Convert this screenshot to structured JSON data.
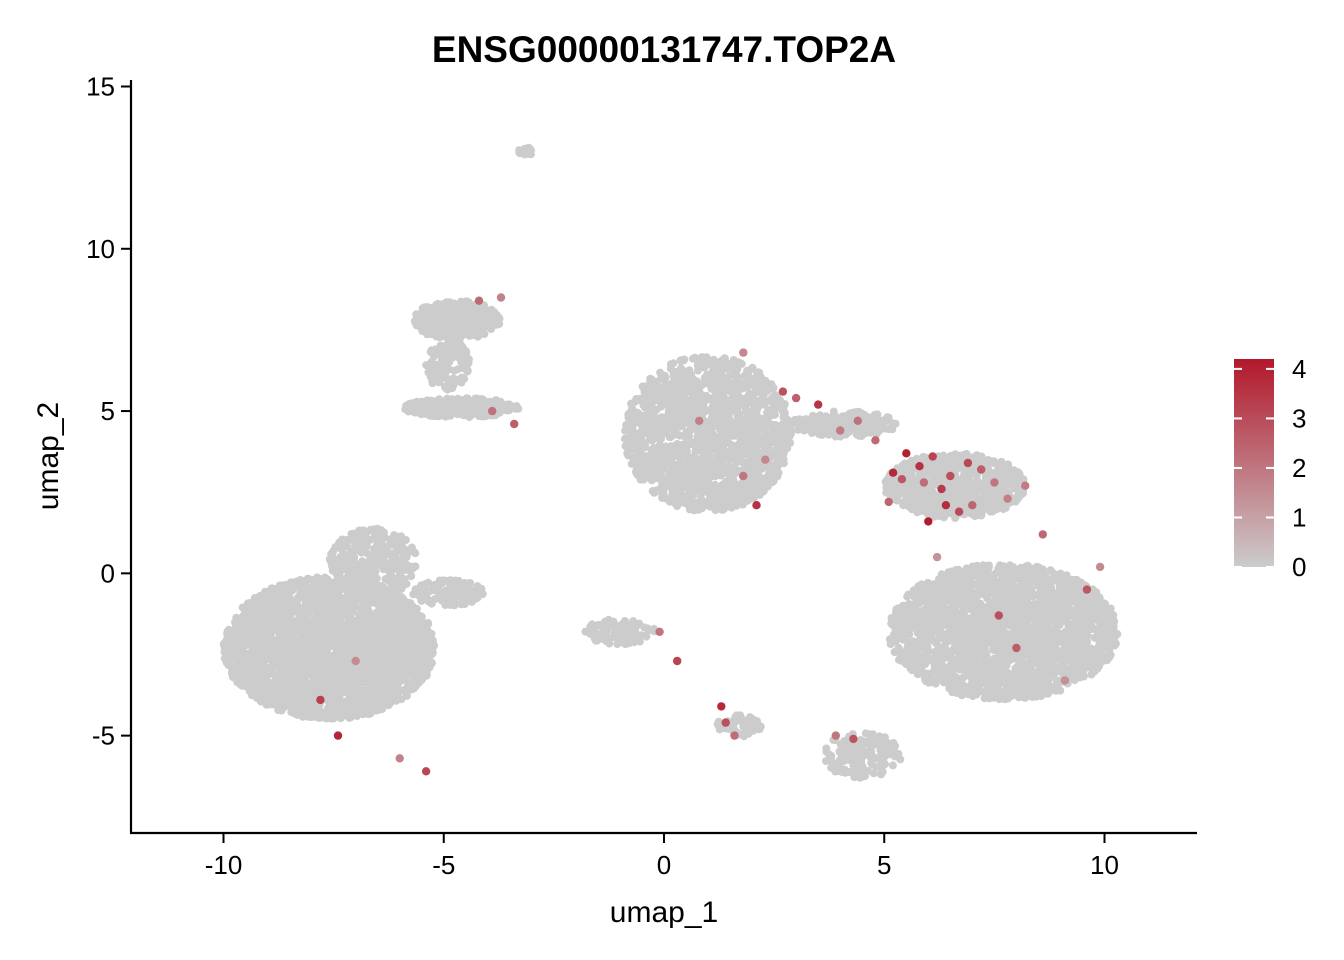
{
  "chart_data": {
    "type": "scatter",
    "title": "ENSG00000131747.TOP2A",
    "xlabel": "umap_1",
    "ylabel": "umap_2",
    "xlim": [
      -12.1,
      12.1
    ],
    "ylim": [
      -8.0,
      15.2
    ],
    "x_ticks": [
      -10,
      -5,
      0,
      5,
      10
    ],
    "x_tick_labels": [
      "-10",
      "-5",
      "0",
      "5",
      "10"
    ],
    "y_ticks": [
      -5,
      0,
      5,
      10,
      15
    ],
    "y_tick_labels": [
      "-5",
      "0",
      "5",
      "10",
      "15"
    ],
    "grid": false,
    "legend": {
      "placement": "right",
      "type": "colorbar",
      "range": [
        0,
        4.2
      ],
      "ticks": [
        0,
        1,
        2,
        3,
        4
      ],
      "tick_labels": [
        "0",
        "1",
        "2",
        "3",
        "4"
      ],
      "low_color": "#cccccc",
      "high_color": "#b2182b"
    },
    "point_color_background": "#cccccc",
    "clusters": [
      {
        "id": "left-large",
        "cx": -7.6,
        "cy": -2.3,
        "rx": 2.4,
        "ry": 2.2,
        "n": 2600
      },
      {
        "id": "left-top-bump",
        "cx": -6.6,
        "cy": 0.3,
        "rx": 1.0,
        "ry": 1.1,
        "n": 300
      },
      {
        "id": "left-tail",
        "cx": -4.9,
        "cy": -0.6,
        "rx": 0.8,
        "ry": 0.4,
        "n": 120
      },
      {
        "id": "left-upper",
        "cx": -4.7,
        "cy": 7.8,
        "rx": 1.0,
        "ry": 0.6,
        "n": 350
      },
      {
        "id": "left-upper-neck",
        "cx": -4.9,
        "cy": 6.4,
        "rx": 0.5,
        "ry": 0.8,
        "n": 120
      },
      {
        "id": "left-mid",
        "cx": -4.6,
        "cy": 5.1,
        "rx": 1.3,
        "ry": 0.3,
        "n": 260
      },
      {
        "id": "top-small",
        "cx": -3.1,
        "cy": 13.0,
        "rx": 0.2,
        "ry": 0.12,
        "n": 20
      },
      {
        "id": "center-top",
        "cx": 1.0,
        "cy": 4.3,
        "rx": 1.9,
        "ry": 2.4,
        "n": 1500
      },
      {
        "id": "center-small",
        "cx": -1.0,
        "cy": -1.8,
        "rx": 0.8,
        "ry": 0.4,
        "n": 110
      },
      {
        "id": "bottom-small",
        "cx": 1.7,
        "cy": -4.7,
        "rx": 0.5,
        "ry": 0.35,
        "n": 60
      },
      {
        "id": "bridge",
        "cx": 4.1,
        "cy": 4.6,
        "rx": 1.2,
        "ry": 0.4,
        "n": 160
      },
      {
        "id": "cycling",
        "cx": 6.6,
        "cy": 2.7,
        "rx": 1.6,
        "ry": 1.0,
        "n": 650
      },
      {
        "id": "right-large",
        "cx": 7.7,
        "cy": -1.8,
        "rx": 2.6,
        "ry": 2.1,
        "n": 2200
      },
      {
        "id": "right-bottom",
        "cx": 4.5,
        "cy": -5.6,
        "rx": 0.9,
        "ry": 0.7,
        "n": 160
      }
    ],
    "expressing_points": [
      {
        "x": 5.5,
        "y": 3.7,
        "v": 4.0
      },
      {
        "x": 5.8,
        "y": 3.3,
        "v": 3.6
      },
      {
        "x": 6.1,
        "y": 3.6,
        "v": 3.2
      },
      {
        "x": 5.2,
        "y": 3.1,
        "v": 3.8
      },
      {
        "x": 6.5,
        "y": 3.0,
        "v": 2.9
      },
      {
        "x": 6.9,
        "y": 3.4,
        "v": 3.1
      },
      {
        "x": 7.2,
        "y": 3.2,
        "v": 2.6
      },
      {
        "x": 6.3,
        "y": 2.6,
        "v": 3.4
      },
      {
        "x": 7.0,
        "y": 2.1,
        "v": 2.4
      },
      {
        "x": 6.4,
        "y": 2.1,
        "v": 3.7
      },
      {
        "x": 5.9,
        "y": 2.8,
        "v": 2.2
      },
      {
        "x": 7.5,
        "y": 2.8,
        "v": 2.0
      },
      {
        "x": 6.0,
        "y": 1.6,
        "v": 4.1
      },
      {
        "x": 6.7,
        "y": 1.9,
        "v": 3.0
      },
      {
        "x": 5.4,
        "y": 2.9,
        "v": 2.7
      },
      {
        "x": 7.8,
        "y": 2.3,
        "v": 1.8
      },
      {
        "x": 4.4,
        "y": 4.7,
        "v": 2.1
      },
      {
        "x": 3.5,
        "y": 5.2,
        "v": 3.5
      },
      {
        "x": 3.0,
        "y": 5.4,
        "v": 2.5
      },
      {
        "x": 4.0,
        "y": 4.4,
        "v": 1.9
      },
      {
        "x": 2.7,
        "y": 5.6,
        "v": 2.8
      },
      {
        "x": 4.8,
        "y": 4.1,
        "v": 2.3
      },
      {
        "x": 1.8,
        "y": 6.8,
        "v": 1.6
      },
      {
        "x": 2.1,
        "y": 2.1,
        "v": 3.6
      },
      {
        "x": 1.8,
        "y": 3.0,
        "v": 2.0
      },
      {
        "x": 0.8,
        "y": 4.7,
        "v": 1.8
      },
      {
        "x": 8.0,
        "y": -2.3,
        "v": 2.6
      },
      {
        "x": 7.6,
        "y": -1.3,
        "v": 2.9
      },
      {
        "x": 9.6,
        "y": -0.5,
        "v": 2.7
      },
      {
        "x": 9.9,
        "y": 0.2,
        "v": 1.5
      },
      {
        "x": 9.1,
        "y": -3.3,
        "v": 1.4
      },
      {
        "x": 8.6,
        "y": 1.2,
        "v": 2.3
      },
      {
        "x": -7.8,
        "y": -3.9,
        "v": 3.3
      },
      {
        "x": -7.4,
        "y": -5.0,
        "v": 3.9
      },
      {
        "x": -5.4,
        "y": -6.1,
        "v": 3.1
      },
      {
        "x": -6.0,
        "y": -5.7,
        "v": 1.7
      },
      {
        "x": -7.0,
        "y": -2.7,
        "v": 1.5
      },
      {
        "x": 1.3,
        "y": -4.1,
        "v": 3.8
      },
      {
        "x": 1.4,
        "y": -4.6,
        "v": 2.9
      },
      {
        "x": 1.6,
        "y": -5.0,
        "v": 2.2
      },
      {
        "x": 0.3,
        "y": -2.7,
        "v": 3.2
      },
      {
        "x": -0.1,
        "y": -1.8,
        "v": 2.0
      },
      {
        "x": 4.3,
        "y": -5.1,
        "v": 2.8
      },
      {
        "x": 3.9,
        "y": -5.0,
        "v": 2.0
      },
      {
        "x": -3.4,
        "y": 4.6,
        "v": 2.6
      },
      {
        "x": -3.9,
        "y": 5.0,
        "v": 2.1
      },
      {
        "x": -3.7,
        "y": 8.5,
        "v": 1.7
      },
      {
        "x": -4.2,
        "y": 8.4,
        "v": 2.3
      },
      {
        "x": 2.3,
        "y": 3.5,
        "v": 1.6
      },
      {
        "x": 5.1,
        "y": 2.2,
        "v": 2.4
      },
      {
        "x": 8.2,
        "y": 2.7,
        "v": 1.9
      },
      {
        "x": 6.2,
        "y": 0.5,
        "v": 1.3
      }
    ]
  }
}
